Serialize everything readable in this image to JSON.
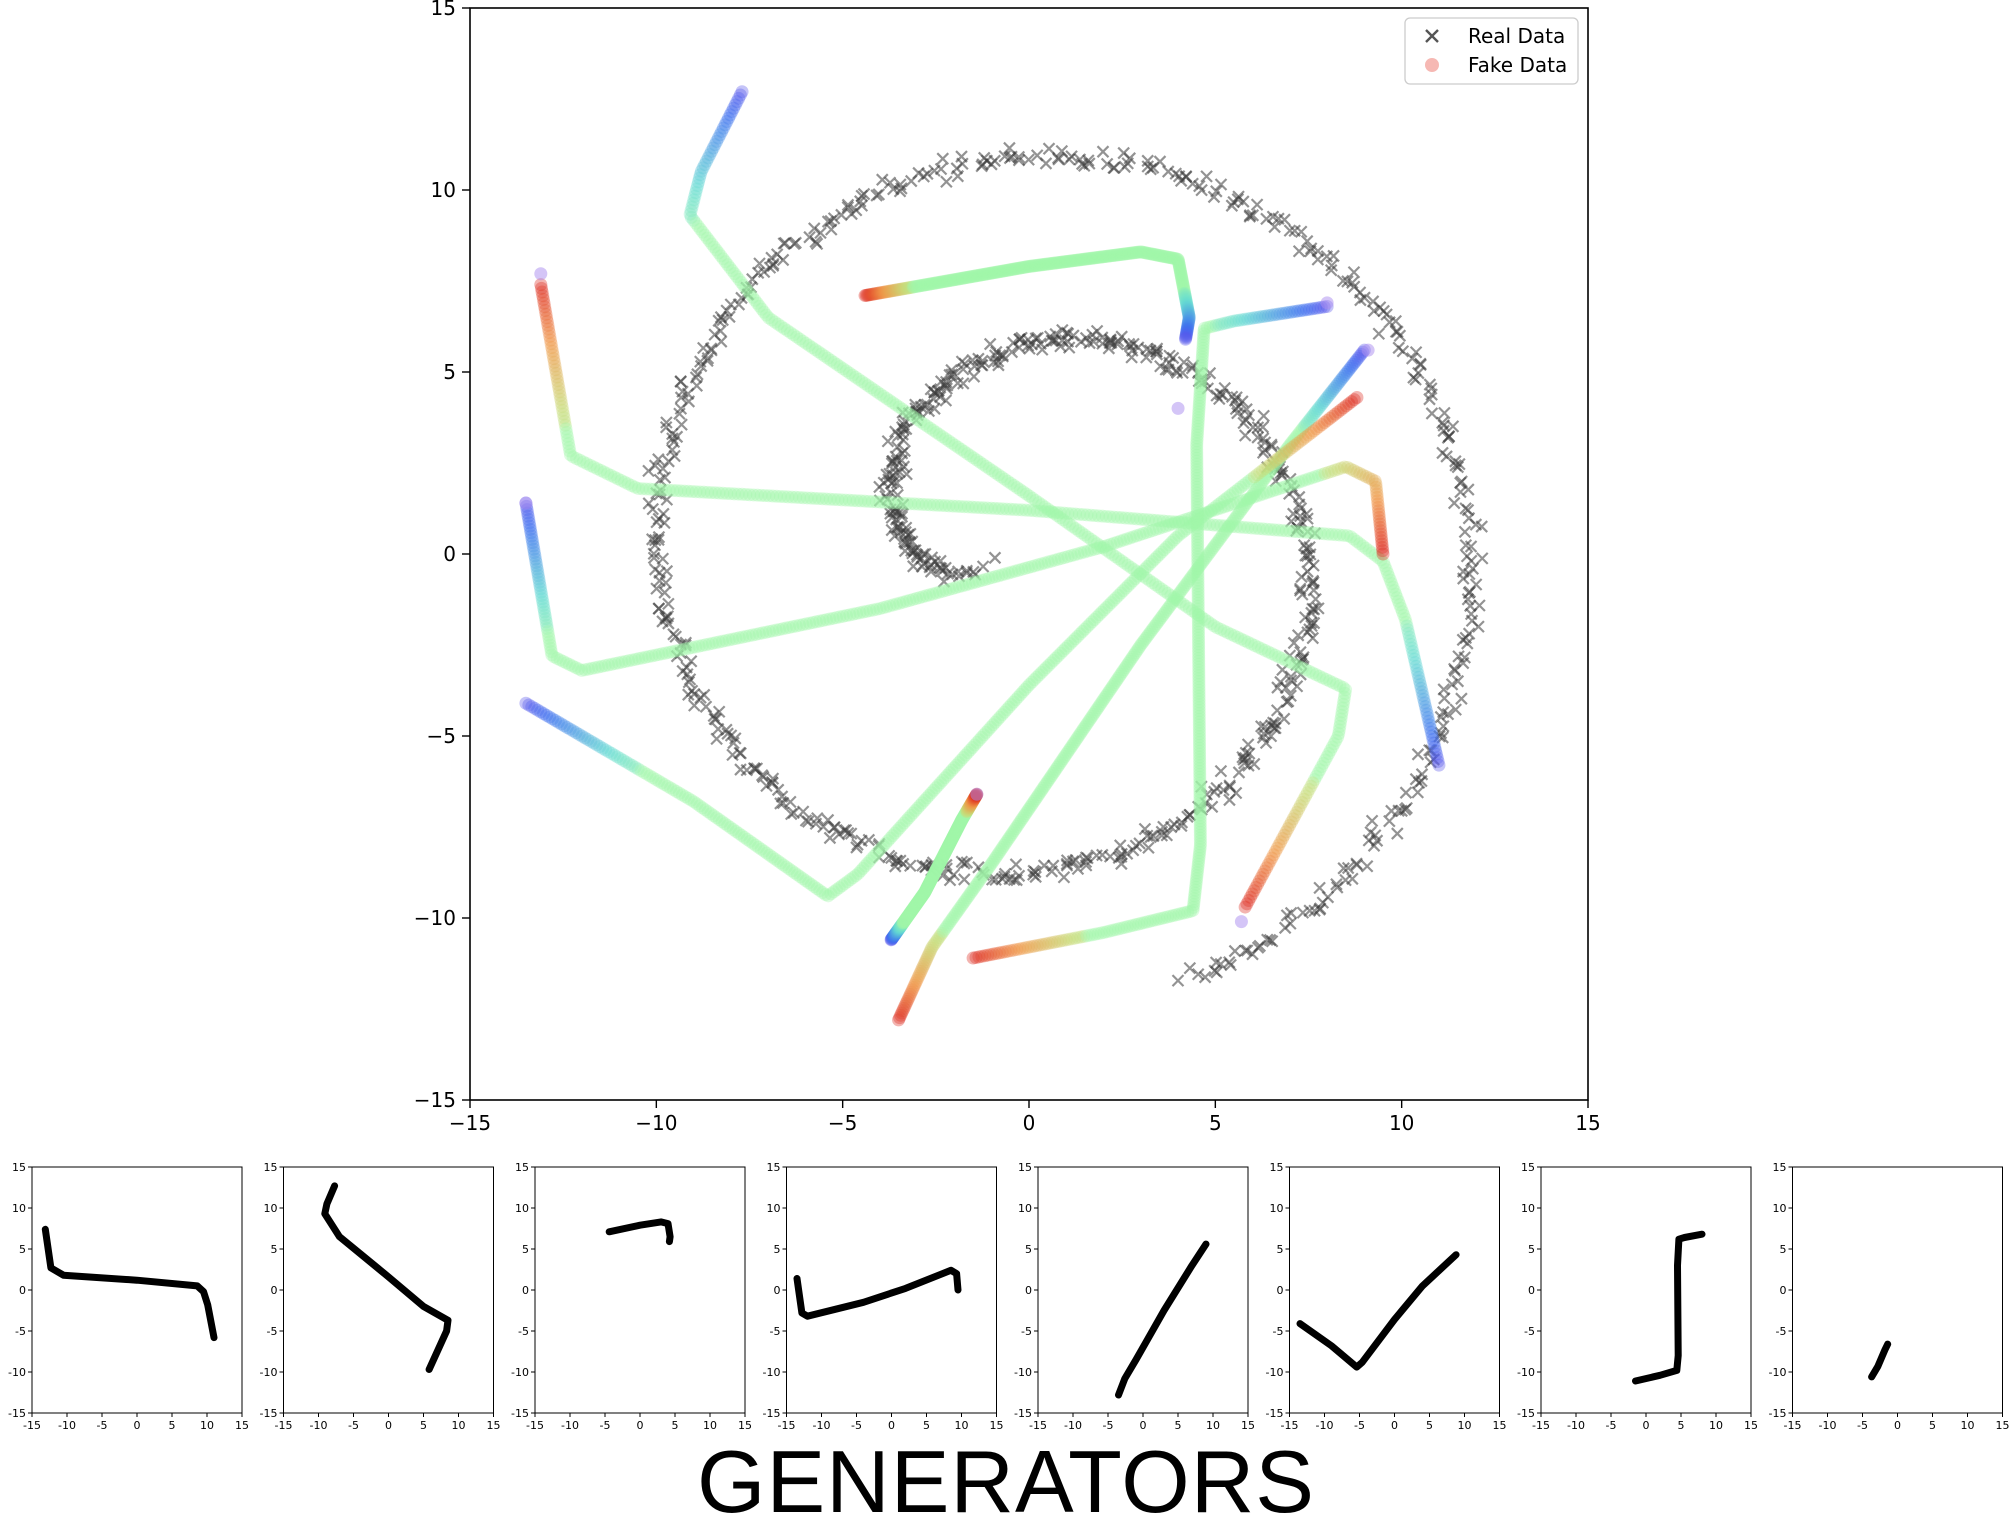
{
  "title": "GENERATORS",
  "main_chart": {
    "xlim": [
      -15,
      15
    ],
    "ylim": [
      -15,
      15
    ],
    "ticks": [
      -15,
      -10,
      -5,
      0,
      5,
      10,
      15
    ],
    "tick_labels": [
      "−15",
      "−10",
      "−5",
      "0",
      "5",
      "10",
      "15"
    ],
    "legend": {
      "placement": "top-right",
      "entries": [
        {
          "label": "Real Data",
          "marker": "x",
          "color": "#444444"
        },
        {
          "label": "Fake Data",
          "marker": "o",
          "color": "#f4a6a0"
        }
      ]
    }
  },
  "small_charts": {
    "xlim": [
      -15,
      15
    ],
    "ylim": [
      -15,
      15
    ],
    "ticks": [
      -15,
      -10,
      -5,
      0,
      5,
      10,
      15
    ],
    "tick_labels": [
      "-15",
      "-10",
      "-5",
      "0",
      "5",
      "10",
      "15"
    ]
  },
  "chart_data": [
    {
      "type": "scatter",
      "title": "",
      "xlabel": "",
      "ylabel": "",
      "xlim": [
        -15,
        15
      ],
      "ylim": [
        -15,
        15
      ],
      "series": [
        {
          "name": "Real Data",
          "marker": "x",
          "description_points": "noisy spiral",
          "spiral": {
            "r_start": 1.0,
            "r_end": 12.5,
            "theta_start_deg": 200,
            "turns": 1.75
          }
        },
        {
          "name": "Fake Data",
          "marker": "o",
          "generators": [
            {
              "id": 1,
              "points": [
                [
                  -13.1,
                  7.4
                ],
                [
                  -12.3,
                  2.7
                ],
                [
                  -10.5,
                  1.8
                ],
                [
                  0,
                  1.2
                ],
                [
                  8.6,
                  0.5
                ],
                [
                  9.5,
                  -0.2
                ],
                [
                  10.1,
                  -1.8
                ],
                [
                  11.0,
                  -5.8
                ]
              ]
            },
            {
              "id": 2,
              "points": [
                [
                  -7.7,
                  12.7
                ],
                [
                  -8.8,
                  10.5
                ],
                [
                  -9.1,
                  9.3
                ],
                [
                  -7.0,
                  6.5
                ],
                [
                  0,
                  1.6
                ],
                [
                  5.0,
                  -2.0
                ],
                [
                  8.5,
                  -3.7
                ],
                [
                  8.3,
                  -5.0
                ],
                [
                  5.8,
                  -9.7
                ]
              ]
            },
            {
              "id": 3,
              "points": [
                [
                  -4.4,
                  7.1
                ],
                [
                  0,
                  7.9
                ],
                [
                  3.0,
                  8.3
                ],
                [
                  4.0,
                  8.1
                ],
                [
                  4.3,
                  6.5
                ],
                [
                  4.2,
                  5.9
                ]
              ]
            },
            {
              "id": 4,
              "points": [
                [
                  -13.5,
                  1.4
                ],
                [
                  -12.8,
                  -2.8
                ],
                [
                  -12.0,
                  -3.2
                ],
                [
                  -4.0,
                  -1.5
                ],
                [
                  2.0,
                  0.2
                ],
                [
                  8.5,
                  2.4
                ],
                [
                  9.3,
                  2.0
                ],
                [
                  9.5,
                  0.0
                ]
              ]
            },
            {
              "id": 5,
              "points": [
                [
                  -3.5,
                  -12.8
                ],
                [
                  -2.6,
                  -10.8
                ],
                [
                  -1.0,
                  -8.5
                ],
                [
                  3.0,
                  -2.5
                ],
                [
                  7.0,
                  3.0
                ],
                [
                  9.0,
                  5.6
                ]
              ]
            },
            {
              "id": 6,
              "points": [
                [
                  -13.5,
                  -4.1
                ],
                [
                  -9.0,
                  -6.8
                ],
                [
                  -5.4,
                  -9.4
                ],
                [
                  -4.6,
                  -8.8
                ],
                [
                  0,
                  -3.6
                ],
                [
                  4.0,
                  0.5
                ],
                [
                  8.8,
                  4.3
                ]
              ]
            },
            {
              "id": 7,
              "points": [
                [
                  -1.5,
                  -11.1
                ],
                [
                  2.0,
                  -10.4
                ],
                [
                  4.4,
                  -9.8
                ],
                [
                  4.6,
                  -8.0
                ],
                [
                  4.5,
                  3.0
                ],
                [
                  4.7,
                  6.2
                ],
                [
                  5.5,
                  6.4
                ],
                [
                  8.0,
                  6.8
                ]
              ]
            },
            {
              "id": 8,
              "points": [
                [
                  -3.7,
                  -10.6
                ],
                [
                  -2.8,
                  -9.3
                ],
                [
                  -1.8,
                  -7.3
                ],
                [
                  -1.4,
                  -6.6
                ]
              ]
            }
          ],
          "outliers": [
            [
              -13.1,
              7.7
            ],
            [
              -13.5,
              1.4
            ],
            [
              4.0,
              4.0
            ],
            [
              5.7,
              -10.1
            ],
            [
              9.1,
              5.6
            ],
            [
              8.0,
              6.9
            ],
            [
              -1.4,
              -6.6
            ]
          ]
        }
      ]
    }
  ]
}
